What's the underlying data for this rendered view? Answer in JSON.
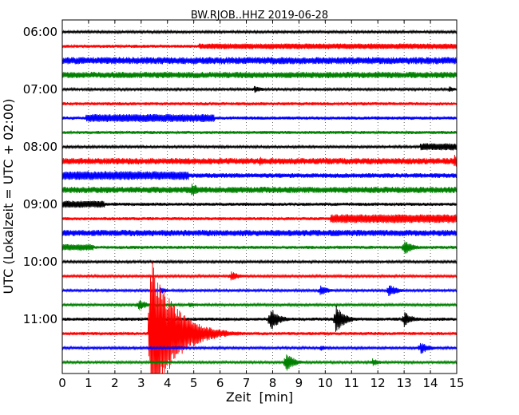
{
  "chart_data": {
    "type": "line",
    "title": "BW.RJOB..HHZ 2019-06-28",
    "xlabel": "Zeit  [min]",
    "ylabel": "UTC (Lokalzeit = UTC + 02:00)",
    "xlim": [
      0,
      15
    ],
    "xticks": [
      "0",
      "1",
      "2",
      "3",
      "4",
      "5",
      "6",
      "7",
      "8",
      "9",
      "10",
      "11",
      "12",
      "13",
      "14",
      "15"
    ],
    "ytick_labels": [
      "06:00",
      "07:00",
      "08:00",
      "09:00",
      "10:00",
      "11:00"
    ],
    "grid": true,
    "colors": [
      "#000000",
      "#ff0000",
      "#0000ff",
      "#008000"
    ],
    "series": [
      {
        "start": "06:00",
        "amp": 1.5,
        "events": []
      },
      {
        "start": "06:15",
        "amp": 2.0,
        "events": [
          {
            "x": 5.2,
            "x2": 15,
            "amp": 3.5
          }
        ]
      },
      {
        "start": "06:30",
        "amp": 4.5,
        "events": []
      },
      {
        "start": "06:45",
        "amp": 4.0,
        "events": [
          {
            "x": 14.0,
            "x2": 15,
            "amp": 1.5
          }
        ]
      },
      {
        "start": "07:00",
        "amp": 1.5,
        "events": [
          {
            "x": 7.3,
            "amp": 5
          },
          {
            "x": 14.7,
            "amp": 4
          }
        ]
      },
      {
        "start": "07:15",
        "amp": 2.0,
        "events": []
      },
      {
        "start": "07:30",
        "amp": 2.0,
        "events": [
          {
            "x": 0.9,
            "x2": 5.8,
            "amp": 5
          }
        ]
      },
      {
        "start": "07:45",
        "amp": 2.0,
        "events": []
      },
      {
        "start": "08:00",
        "amp": 1.5,
        "events": [
          {
            "x": 13.6,
            "x2": 15,
            "amp": 4.5
          }
        ]
      },
      {
        "start": "08:15",
        "amp": 4.0,
        "events": [
          {
            "x": 7.5,
            "amp": 6
          },
          {
            "x": 14.9,
            "amp": 9
          }
        ]
      },
      {
        "start": "08:30",
        "amp": 3.0,
        "events": [
          {
            "x": 0,
            "x2": 4.8,
            "amp": 5.5
          }
        ]
      },
      {
        "start": "08:45",
        "amp": 4.0,
        "events": [
          {
            "x": 4.9,
            "amp": 10
          }
        ]
      },
      {
        "start": "09:00",
        "amp": 2.0,
        "events": [
          {
            "x": 0,
            "x2": 1.6,
            "amp": 4.5
          }
        ]
      },
      {
        "start": "09:15",
        "amp": 2.0,
        "events": [
          {
            "x": 10.2,
            "x2": 15,
            "amp": 5.5
          }
        ]
      },
      {
        "start": "09:30",
        "amp": 4.0,
        "events": []
      },
      {
        "start": "09:45",
        "amp": 2.0,
        "events": [
          {
            "x": 0,
            "x2": 1.2,
            "amp": 4
          },
          {
            "x": 13.0,
            "amp": 10
          }
        ]
      },
      {
        "start": "10:00",
        "amp": 1.5,
        "events": []
      },
      {
        "start": "10:15",
        "amp": 1.5,
        "events": [
          {
            "x": 6.4,
            "amp": 7
          }
        ]
      },
      {
        "start": "10:30",
        "amp": 1.5,
        "events": [
          {
            "x": 3.7,
            "amp": 5
          },
          {
            "x": 9.8,
            "amp": 7
          },
          {
            "x": 12.4,
            "amp": 9
          }
        ]
      },
      {
        "start": "10:45",
        "amp": 1.5,
        "events": [
          {
            "x": 2.9,
            "amp": 8
          },
          {
            "x": 4.8,
            "amp": 4
          }
        ]
      },
      {
        "start": "11:00",
        "amp": 2.0,
        "events": [
          {
            "x": 7.9,
            "amp": 16
          },
          {
            "x": 10.4,
            "amp": 18
          },
          {
            "x": 13.0,
            "amp": 10
          }
        ]
      },
      {
        "start": "11:15",
        "amp": 2.0,
        "events": [
          {
            "x": 3.35,
            "amp": 100
          }
        ]
      },
      {
        "start": "11:30",
        "amp": 1.5,
        "events": [
          {
            "x": 9.8,
            "amp": 4
          },
          {
            "x": 13.6,
            "amp": 9
          }
        ]
      },
      {
        "start": "11:45",
        "amp": 1.5,
        "events": [
          {
            "x": 8.5,
            "amp": 13
          },
          {
            "x": 11.8,
            "amp": 5
          }
        ]
      }
    ]
  }
}
